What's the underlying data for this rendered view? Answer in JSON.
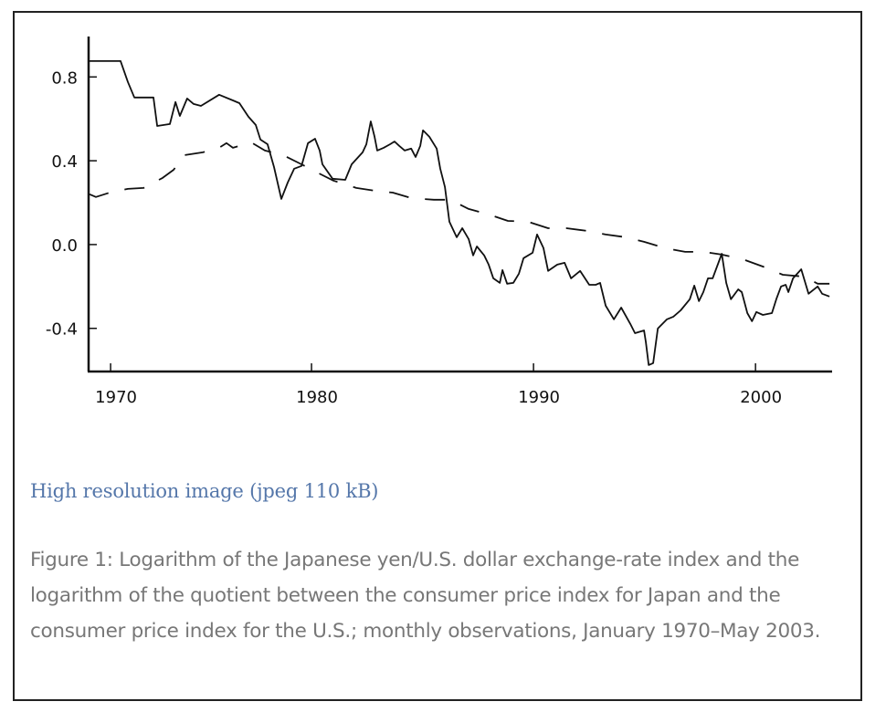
{
  "chart_data": {
    "type": "line",
    "title": "",
    "xlabel": "",
    "ylabel": "",
    "xlim": [
      1970.0,
      2003.45
    ],
    "ylim": [
      -0.606,
      0.993
    ],
    "grid": false,
    "legend": null,
    "xticks": [
      {
        "value": 1970.95,
        "label": "1970"
      },
      {
        "value": 1980.0,
        "label": "1980"
      },
      {
        "value": 1990.0,
        "label": "1990"
      },
      {
        "value": 2000.0,
        "label": "2000"
      }
    ],
    "yticks": [
      {
        "value": 0.8,
        "label": "0.8"
      },
      {
        "value": 0.4,
        "label": "0.4"
      },
      {
        "value": 0.0,
        "label": "0.0"
      },
      {
        "value": -0.4,
        "label": "-0.4"
      }
    ],
    "series": [
      {
        "name": "Log yen/U.S. dollar exchange-rate index",
        "style": "solid",
        "x": [
          1970.0,
          1971.4,
          1971.73,
          1972.02,
          1972.88,
          1973.05,
          1973.62,
          1973.87,
          1974.07,
          1974.4,
          1974.69,
          1975.02,
          1975.84,
          1976.46,
          1976.75,
          1977.16,
          1977.49,
          1977.7,
          1978.02,
          1978.31,
          1978.64,
          1978.93,
          1979.22,
          1979.55,
          1979.84,
          1980.16,
          1980.37,
          1980.49,
          1980.95,
          1981.52,
          1981.81,
          1982.3,
          1982.47,
          1982.67,
          1982.84,
          1982.96,
          1983.25,
          1983.54,
          1983.74,
          1983.95,
          1984.2,
          1984.49,
          1984.69,
          1984.9,
          1985.02,
          1985.31,
          1985.64,
          1985.8,
          1986.01,
          1986.21,
          1986.54,
          1986.79,
          1987.08,
          1987.28,
          1987.45,
          1987.78,
          1987.98,
          1988.19,
          1988.48,
          1988.6,
          1988.81,
          1989.09,
          1989.34,
          1989.55,
          1989.96,
          1990.16,
          1990.45,
          1990.66,
          1991.07,
          1991.4,
          1991.69,
          1992.1,
          1992.51,
          1992.8,
          1993.0,
          1993.25,
          1993.62,
          1993.95,
          1994.36,
          1994.57,
          1994.98,
          1995.06,
          1995.19,
          1995.39,
          1995.6,
          1996.01,
          1996.3,
          1996.63,
          1997.04,
          1997.24,
          1997.45,
          1997.65,
          1997.86,
          1998.07,
          1998.48,
          1998.68,
          1998.89,
          1999.22,
          1999.38,
          1999.63,
          1999.84,
          2000.04,
          2000.33,
          2000.74,
          2000.95,
          2001.15,
          2001.36,
          2001.48,
          2001.69,
          2002.06,
          2002.39,
          2002.8,
          2003.0,
          2003.33
        ],
        "y": [
          0.876,
          0.876,
          0.776,
          0.702,
          0.702,
          0.566,
          0.575,
          0.68,
          0.614,
          0.697,
          0.671,
          0.662,
          0.715,
          0.688,
          0.675,
          0.61,
          0.571,
          0.501,
          0.479,
          0.37,
          0.218,
          0.296,
          0.362,
          0.375,
          0.484,
          0.505,
          0.449,
          0.383,
          0.314,
          0.309,
          0.383,
          0.44,
          0.479,
          0.588,
          0.514,
          0.449,
          0.462,
          0.479,
          0.492,
          0.471,
          0.449,
          0.458,
          0.418,
          0.471,
          0.545,
          0.514,
          0.458,
          0.362,
          0.275,
          0.109,
          0.035,
          0.078,
          0.026,
          -0.052,
          -0.009,
          -0.052,
          -0.096,
          -0.161,
          -0.183,
          -0.122,
          -0.187,
          -0.183,
          -0.139,
          -0.065,
          -0.039,
          0.048,
          -0.017,
          -0.126,
          -0.096,
          -0.087,
          -0.161,
          -0.126,
          -0.192,
          -0.192,
          -0.183,
          -0.292,
          -0.357,
          -0.301,
          -0.379,
          -0.423,
          -0.41,
          -0.466,
          -0.575,
          -0.566,
          -0.401,
          -0.357,
          -0.344,
          -0.314,
          -0.261,
          -0.196,
          -0.27,
          -0.227,
          -0.161,
          -0.161,
          -0.044,
          -0.183,
          -0.261,
          -0.214,
          -0.227,
          -0.327,
          -0.366,
          -0.322,
          -0.336,
          -0.327,
          -0.257,
          -0.2,
          -0.192,
          -0.227,
          -0.161,
          -0.118,
          -0.235,
          -0.2,
          -0.235,
          -0.248
        ]
      },
      {
        "name": "Log Japan CPI / U.S. CPI",
        "style": "dashed",
        "x": [
          1970.0,
          1970.29,
          1970.91,
          1971.73,
          1972.43,
          1973.29,
          1973.79,
          1974.28,
          1975.1,
          1975.84,
          1976.17,
          1976.46,
          1977.28,
          1977.9,
          1978.72,
          1979.55,
          1980.16,
          1980.99,
          1982.02,
          1982.84,
          1983.66,
          1984.49,
          1985.51,
          1986.25,
          1987.08,
          1987.98,
          1988.85,
          1989.75,
          1990.66,
          1991.48,
          1992.43,
          1993.25,
          1994.16,
          1994.98,
          1995.93,
          1996.83,
          1997.65,
          1998.48,
          1999.42,
          2000.33,
          2001.23,
          2002.18,
          2002.8,
          2003.33
        ],
        "y": [
          0.24,
          0.227,
          0.248,
          0.266,
          0.27,
          0.318,
          0.357,
          0.427,
          0.44,
          0.462,
          0.484,
          0.462,
          0.488,
          0.449,
          0.427,
          0.383,
          0.349,
          0.305,
          0.27,
          0.257,
          0.248,
          0.222,
          0.214,
          0.214,
          0.17,
          0.144,
          0.113,
          0.109,
          0.078,
          0.078,
          0.065,
          0.048,
          0.035,
          0.013,
          -0.017,
          -0.035,
          -0.035,
          -0.048,
          -0.07,
          -0.105,
          -0.144,
          -0.153,
          -0.187,
          -0.187
        ]
      }
    ]
  },
  "link": {
    "label": "High resolution image (jpeg 110 kB)"
  },
  "caption": {
    "text": "Figure 1: Logarithm of the Japanese yen/U.S. dollar exchange-rate index and the logarithm of the quotient between the consumer price index for Japan and the consumer price index for the U.S.; monthly observations, January 1970–May 2003."
  }
}
